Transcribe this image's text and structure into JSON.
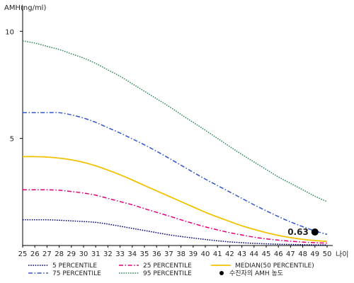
{
  "chart_data": {
    "type": "line",
    "ylabel": "AMH(ng/ml)",
    "xlabel": "나이",
    "x": [
      25,
      26,
      27,
      28,
      29,
      30,
      31,
      32,
      33,
      34,
      35,
      36,
      37,
      38,
      39,
      40,
      41,
      42,
      43,
      44,
      45,
      46,
      47,
      48,
      49,
      50
    ],
    "x_ticks": [
      "25",
      "26",
      "27",
      "28",
      "29",
      "30",
      "31",
      "32",
      "33",
      "34",
      "35",
      "36",
      "37",
      "38",
      "39",
      "40",
      "41",
      "42",
      "43",
      "44",
      "45",
      "46",
      "47",
      "48",
      "49",
      "50"
    ],
    "y_ticks": [
      "5",
      "10"
    ],
    "y_tick_values": [
      5,
      10
    ],
    "xlim": [
      25,
      50
    ],
    "ylim": [
      0,
      11
    ],
    "grid": false,
    "legend_position": "bottom",
    "series": [
      {
        "name": "5 PERCENTILE",
        "color": "#000080",
        "style": "dotted",
        "values": [
          1.2,
          1.2,
          1.2,
          1.18,
          1.15,
          1.12,
          1.08,
          1.0,
          0.9,
          0.8,
          0.7,
          0.6,
          0.5,
          0.42,
          0.35,
          0.28,
          0.22,
          0.17,
          0.13,
          0.1,
          0.08,
          0.06,
          0.05,
          0.04,
          0.03,
          0.03
        ]
      },
      {
        "name": "25 PERCENTILE",
        "color": "#e0007a",
        "style": "dashdot",
        "values": [
          2.6,
          2.6,
          2.6,
          2.58,
          2.52,
          2.45,
          2.35,
          2.2,
          2.05,
          1.9,
          1.72,
          1.55,
          1.38,
          1.2,
          1.03,
          0.87,
          0.73,
          0.6,
          0.49,
          0.39,
          0.31,
          0.25,
          0.2,
          0.16,
          0.13,
          0.11
        ]
      },
      {
        "name": "MEDIAN(50 PERCENTILE)",
        "color": "#f2c200",
        "style": "solid",
        "values": [
          4.15,
          4.15,
          4.13,
          4.08,
          4.0,
          3.88,
          3.72,
          3.52,
          3.3,
          3.06,
          2.8,
          2.55,
          2.3,
          2.05,
          1.8,
          1.55,
          1.33,
          1.12,
          0.92,
          0.75,
          0.6,
          0.47,
          0.37,
          0.29,
          0.23,
          0.19
        ]
      },
      {
        "name": "75 PERCENTILE",
        "color": "#3355cc",
        "style": "dashdot",
        "values": [
          6.2,
          6.2,
          6.2,
          6.2,
          6.1,
          5.95,
          5.75,
          5.5,
          5.25,
          4.98,
          4.7,
          4.4,
          4.08,
          3.75,
          3.42,
          3.1,
          2.8,
          2.5,
          2.2,
          1.9,
          1.62,
          1.35,
          1.1,
          0.88,
          0.68,
          0.52
        ]
      },
      {
        "name": "95 PERCENTILE",
        "color": "#2e8b57",
        "style": "dotted",
        "values": [
          9.55,
          9.45,
          9.3,
          9.15,
          8.95,
          8.75,
          8.5,
          8.2,
          7.9,
          7.55,
          7.2,
          6.85,
          6.5,
          6.12,
          5.75,
          5.38,
          5.0,
          4.62,
          4.25,
          3.9,
          3.55,
          3.2,
          2.9,
          2.6,
          2.3,
          2.05
        ]
      },
      {
        "name": "수진자의 AMH 농도",
        "color": "#000000",
        "style": "point",
        "points": [
          {
            "x": 49,
            "y": 0.63,
            "label": "0.63"
          }
        ]
      }
    ]
  }
}
